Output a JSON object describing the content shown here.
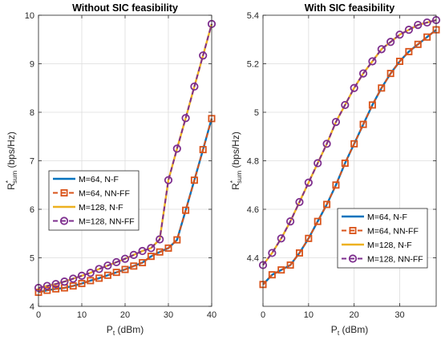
{
  "chart_data": [
    {
      "type": "line",
      "title": "Without SIC feasibility",
      "xlabel": "P",
      "xlabel_sub": "t",
      "xlabel_unit": " (dBm)",
      "ylabel": "R",
      "ylabel_sup": "*",
      "ylabel_sub": "sum",
      "ylabel_unit": " (bps/Hz)",
      "xlim": [
        0,
        40
      ],
      "ylim": [
        4,
        10
      ],
      "xticks": [
        0,
        10,
        20,
        30,
        40
      ],
      "yticks": [
        4,
        5,
        6,
        7,
        8,
        9,
        10
      ],
      "grid": true,
      "legend_position": "center-left",
      "x": [
        0,
        2,
        4,
        6,
        8,
        10,
        12,
        14,
        16,
        18,
        20,
        22,
        24,
        26,
        28,
        30,
        32,
        34,
        36,
        38,
        40
      ],
      "series": [
        {
          "name": "M=64, N-F",
          "color": "#0072BD",
          "marker": "none",
          "style": "solid",
          "values": [
            4.29,
            4.33,
            4.36,
            4.38,
            4.42,
            4.47,
            4.53,
            4.58,
            4.64,
            4.7,
            4.76,
            4.83,
            4.9,
            5.03,
            5.12,
            5.2,
            5.37,
            5.98,
            6.6,
            7.23,
            7.87
          ]
        },
        {
          "name": "M=64, NN-FF",
          "color": "#D95319",
          "marker": "square",
          "style": "dashed",
          "values": [
            4.29,
            4.33,
            4.36,
            4.38,
            4.42,
            4.47,
            4.53,
            4.58,
            4.64,
            4.7,
            4.76,
            4.83,
            4.9,
            5.03,
            5.12,
            5.2,
            5.37,
            5.98,
            6.6,
            7.23,
            7.87
          ]
        },
        {
          "name": "M=128, N-F",
          "color": "#EDB120",
          "marker": "none",
          "style": "solid",
          "values": [
            4.38,
            4.42,
            4.46,
            4.51,
            4.57,
            4.63,
            4.69,
            4.77,
            4.84,
            4.91,
            4.98,
            5.06,
            5.14,
            5.2,
            5.38,
            6.6,
            7.25,
            7.88,
            8.53,
            9.17,
            9.82
          ]
        },
        {
          "name": "M=128, NN-FF",
          "color": "#7E2F8E",
          "marker": "circle",
          "style": "dashed",
          "values": [
            4.38,
            4.42,
            4.46,
            4.51,
            4.57,
            4.63,
            4.69,
            4.77,
            4.84,
            4.91,
            4.98,
            5.06,
            5.14,
            5.2,
            5.38,
            6.6,
            7.25,
            7.88,
            8.53,
            9.17,
            9.82
          ]
        }
      ]
    },
    {
      "type": "line",
      "title": "With SIC feasibility",
      "xlabel": "P",
      "xlabel_sub": "t",
      "xlabel_unit": " (dBm)",
      "ylabel": "R",
      "ylabel_sup": "*",
      "ylabel_sub": "sum",
      "ylabel_unit": " (bps/Hz)",
      "xlim": [
        0,
        38
      ],
      "ylim": [
        4.2,
        5.4
      ],
      "xticks": [
        0,
        10,
        20,
        30
      ],
      "yticks": [
        4.4,
        4.6,
        4.8,
        5.0,
        5.2,
        5.4
      ],
      "yticklabels": [
        "4.4",
        "4.6",
        "4.8",
        "5",
        "5.2",
        "5.4"
      ],
      "grid": true,
      "legend_position": "bottom-right",
      "x": [
        0,
        2,
        4,
        6,
        8,
        10,
        12,
        14,
        16,
        18,
        20,
        22,
        24,
        26,
        28,
        30,
        32,
        34,
        36,
        38
      ],
      "series": [
        {
          "name": "M=64, N-F",
          "color": "#0072BD",
          "marker": "none",
          "style": "solid",
          "values": [
            4.29,
            4.33,
            4.35,
            4.37,
            4.42,
            4.48,
            4.55,
            4.62,
            4.7,
            4.79,
            4.87,
            4.95,
            5.03,
            5.1,
            5.16,
            5.21,
            5.25,
            5.28,
            5.31,
            5.34
          ]
        },
        {
          "name": "M=64, NN-FF",
          "color": "#D95319",
          "marker": "square",
          "style": "dashed",
          "values": [
            4.29,
            4.33,
            4.35,
            4.37,
            4.42,
            4.48,
            4.55,
            4.62,
            4.7,
            4.79,
            4.87,
            4.95,
            5.03,
            5.1,
            5.16,
            5.21,
            5.25,
            5.28,
            5.31,
            5.34
          ]
        },
        {
          "name": "M=128, N-F",
          "color": "#EDB120",
          "marker": "none",
          "style": "solid",
          "values": [
            4.37,
            4.42,
            4.48,
            4.55,
            4.63,
            4.71,
            4.79,
            4.87,
            4.96,
            5.03,
            5.1,
            5.16,
            5.21,
            5.26,
            5.29,
            5.32,
            5.34,
            5.36,
            5.37,
            5.38
          ]
        },
        {
          "name": "M=128, NN-FF",
          "color": "#7E2F8E",
          "marker": "circle",
          "style": "dashed",
          "values": [
            4.37,
            4.42,
            4.48,
            4.55,
            4.63,
            4.71,
            4.79,
            4.87,
            4.96,
            5.03,
            5.1,
            5.16,
            5.21,
            5.26,
            5.29,
            5.32,
            5.34,
            5.36,
            5.37,
            5.38
          ]
        }
      ]
    }
  ]
}
